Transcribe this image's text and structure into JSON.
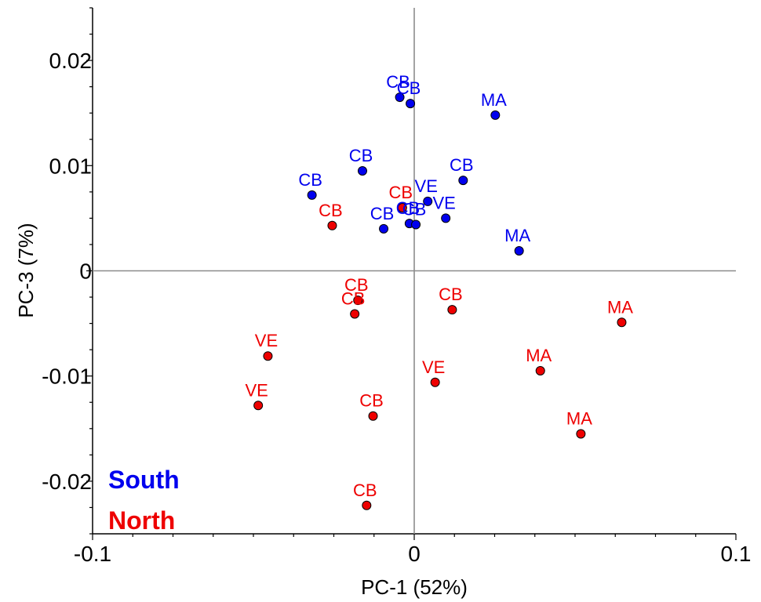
{
  "chart_data": {
    "type": "scatter",
    "xlabel": "PC-1 (52%)",
    "ylabel": "PC-3 (7%)",
    "xlim": [
      -0.1,
      0.1
    ],
    "ylim": [
      -0.025,
      0.025
    ],
    "xticks": [
      {
        "value": -0.1,
        "label": "-0.1"
      },
      {
        "value": 0,
        "label": "0"
      },
      {
        "value": 0.1,
        "label": "0.1"
      }
    ],
    "yticks": [
      {
        "value": 0.02,
        "label": "0.02"
      },
      {
        "value": 0.01,
        "label": "0.01"
      },
      {
        "value": 0,
        "label": "0"
      },
      {
        "value": -0.01,
        "label": "-0.01"
      },
      {
        "value": -0.02,
        "label": "-0.02"
      }
    ],
    "grid": false,
    "zero_lines": true,
    "legend_position": "bottom-left",
    "series": [
      {
        "name": "South",
        "color": "#0000ee",
        "points": [
          {
            "label": "CB",
            "x": -0.0045,
            "y": 0.0165
          },
          {
            "label": "CB",
            "x": -0.0012,
            "y": 0.0159
          },
          {
            "label": "MA",
            "x": 0.0252,
            "y": 0.0148
          },
          {
            "label": "CB",
            "x": -0.0161,
            "y": 0.0095
          },
          {
            "label": "CB",
            "x": 0.0152,
            "y": 0.0086
          },
          {
            "label": "CB",
            "x": -0.0318,
            "y": 0.0072
          },
          {
            "label": "VE",
            "x": 0.0042,
            "y": 0.0066
          },
          {
            "label": "VE",
            "x": 0.0098,
            "y": 0.005
          },
          {
            "label": "CB",
            "x": -0.0015,
            "y": 0.0045
          },
          {
            "label": "CB",
            "x": 0.0005,
            "y": 0.0044
          },
          {
            "label": "CB",
            "x": -0.0095,
            "y": 0.004
          },
          {
            "label": "MA",
            "x": 0.0326,
            "y": 0.0019
          }
        ]
      },
      {
        "name": "North",
        "color": "#ee0000",
        "points": [
          {
            "label": "CB",
            "x": -0.0037,
            "y": 0.006
          },
          {
            "label": "CB",
            "x": -0.0255,
            "y": 0.0043
          },
          {
            "label": "CB",
            "x": -0.0175,
            "y": -0.0028
          },
          {
            "label": "CB",
            "x": -0.0185,
            "y": -0.0041
          },
          {
            "label": "CB",
            "x": 0.0118,
            "y": -0.0037
          },
          {
            "label": "MA",
            "x": 0.0645,
            "y": -0.0049
          },
          {
            "label": "VE",
            "x": -0.0455,
            "y": -0.0081
          },
          {
            "label": "MA",
            "x": 0.0392,
            "y": -0.0095
          },
          {
            "label": "VE",
            "x": 0.0065,
            "y": -0.0106
          },
          {
            "label": "VE",
            "x": -0.0485,
            "y": -0.0128
          },
          {
            "label": "CB",
            "x": -0.0128,
            "y": -0.0138
          },
          {
            "label": "MA",
            "x": 0.0518,
            "y": -0.0155
          },
          {
            "label": "CB",
            "x": -0.0148,
            "y": -0.0223
          }
        ]
      }
    ]
  },
  "legend": {
    "south": {
      "label": "South",
      "color": "#0000ee"
    },
    "north": {
      "label": "North",
      "color": "#ee0000"
    }
  }
}
